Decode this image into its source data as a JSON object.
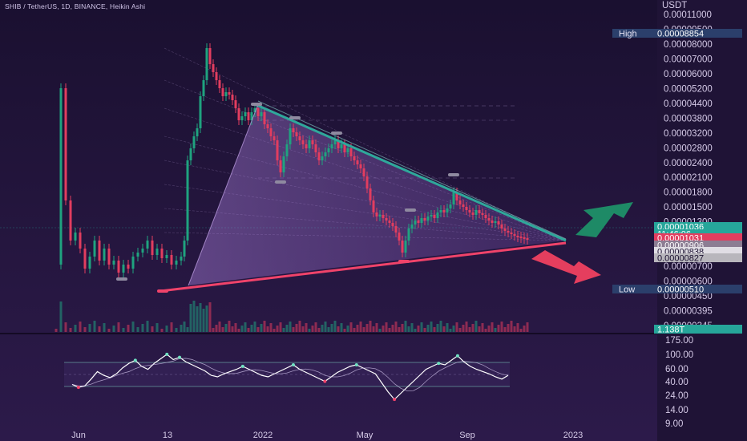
{
  "header": {
    "symbol_line": "SHIB / TetherUS, 1D, BINANCE, Heikin Ashi"
  },
  "colors": {
    "background": "#1e1233",
    "up_candle": "#1fa37f",
    "down_candle": "#e23d5f",
    "upper_trendline": "#2fa89b",
    "lower_trendline": "#f0436a",
    "triangle_fill": "#9b6fd4",
    "up_arrow": "#1e8a66",
    "down_arrow": "#e53e5e",
    "rsi_line": "#ffffff",
    "rsi_ma_line": "#d6c8f0"
  },
  "chart_data": [
    {
      "type": "candlestick",
      "title": "SHIB / TetherUS, 1D, BINANCE, Heikin Ashi",
      "y_unit": "USDT",
      "y_scale": "log",
      "ylim": [
        3.4e-06,
        1.1e-05
      ],
      "y_tick_labels": [
        "0.00011000",
        "0.00009500",
        "0.00008000",
        "0.00007000",
        "0.00006000",
        "0.00005200",
        "0.00004400",
        "0.00003800",
        "0.00003200",
        "0.00002800",
        "0.00002400",
        "0.00002100",
        "0.00001800",
        "0.00001500",
        "0.00001300",
        "0.00001100",
        "0.00000950",
        "0.00000700",
        "0.00000600",
        "0.00000450",
        "0.00000395",
        "0.00000345"
      ],
      "x_tick_labels": [
        "Jun",
        "13",
        "2022",
        "May",
        "Sep",
        "2023"
      ],
      "price_badges": [
        {
          "name": "High",
          "label": "High",
          "value": "0.00008854",
          "color": "#2b3f6b"
        },
        {
          "name": "last",
          "label": "",
          "value": "0.00001036",
          "color": "#26a69a"
        },
        {
          "name": "countdown",
          "label": "",
          "value": "11:46:06",
          "color": "#26a69a"
        },
        {
          "name": "price-red",
          "label": "",
          "value": "0.00001031",
          "color": "#e23d5f"
        },
        {
          "name": "price-mauve",
          "label": "",
          "value": "0.00000906",
          "color": "#8c7d93"
        },
        {
          "name": "price-light",
          "label": "",
          "value": "0.00000838",
          "color": "#e0dde4"
        },
        {
          "name": "price-gray",
          "label": "",
          "value": "0.00000827",
          "color": "#b8b6bc"
        },
        {
          "name": "Low",
          "label": "Low",
          "value": "0.00000510",
          "color": "#2b3f6b"
        },
        {
          "name": "volume",
          "label": "",
          "value": "1.138T",
          "color": "#26a69a"
        }
      ],
      "annotations": [
        "descending triangle",
        "bullish breakout arrow",
        "bearish breakdown arrow"
      ]
    },
    {
      "type": "line",
      "name": "RSI",
      "y_tick_labels": [
        "175.00",
        "100.00",
        "60.00",
        "40.00",
        "24.00",
        "14.00",
        "9.00"
      ],
      "series": [
        {
          "name": "rsi",
          "values": [
            38,
            34,
            36,
            45,
            55,
            50,
            47,
            52,
            60,
            66,
            70,
            62,
            58,
            66,
            72,
            78,
            71,
            74,
            68,
            64,
            60,
            56,
            50,
            48,
            52,
            55,
            58,
            62,
            58,
            54,
            50,
            48,
            52,
            56,
            60,
            64,
            58,
            54,
            50,
            46,
            42,
            48,
            54,
            58,
            62,
            64,
            60,
            56,
            52,
            40,
            28,
            18,
            26,
            34,
            42,
            50,
            58,
            62,
            66,
            64,
            70,
            76,
            68,
            62,
            58,
            55,
            52,
            48,
            45,
            50
          ]
        }
      ]
    }
  ]
}
